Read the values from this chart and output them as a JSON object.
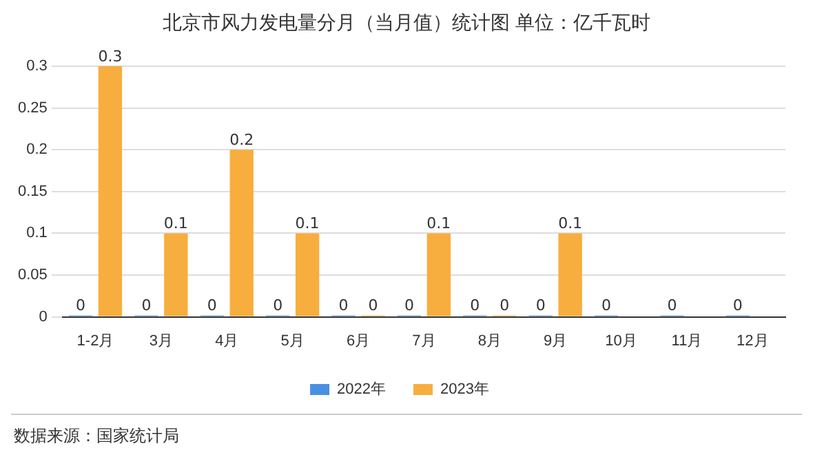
{
  "chart_data": {
    "type": "bar",
    "title": "北京市风力发电量分月（当月值）统计图 单位：亿千瓦时",
    "categories": [
      "1-2月",
      "3月",
      "4月",
      "5月",
      "6月",
      "7月",
      "8月",
      "9月",
      "10月",
      "11月",
      "12月"
    ],
    "series": [
      {
        "name": "2022年",
        "color": "#4a90e2",
        "values": [
          0,
          0,
          0,
          0,
          0,
          0,
          0,
          0,
          0,
          0,
          0
        ]
      },
      {
        "name": "2023年",
        "color": "#f7ae3e",
        "values": [
          0.3,
          0.1,
          0.2,
          0.1,
          0,
          0.1,
          0,
          0.1,
          null,
          null,
          null
        ]
      }
    ],
    "ylim": [
      0,
      0.3
    ],
    "yticks": [
      0,
      0.05,
      0.1,
      0.15,
      0.2,
      0.25,
      0.3
    ],
    "grid": "y",
    "legend": "bottom",
    "data_labels": true,
    "annotations": [
      "数据来源：国家统计局"
    ]
  }
}
